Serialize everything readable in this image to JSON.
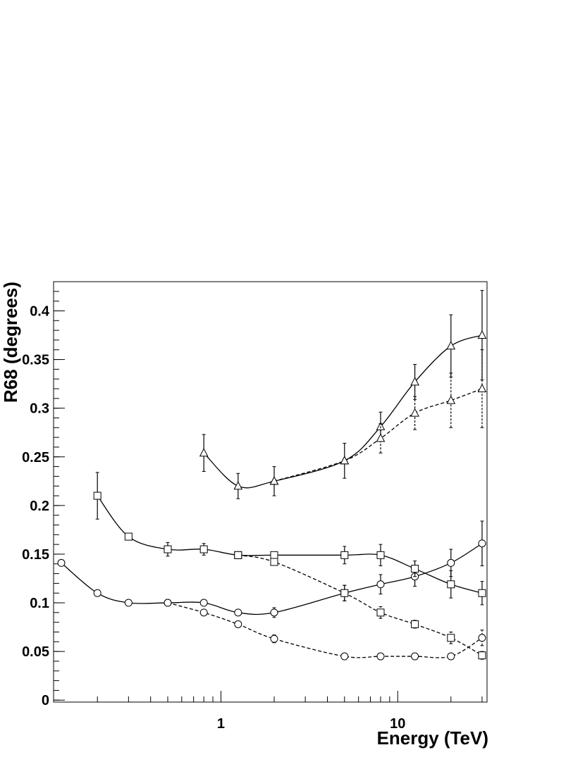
{
  "chart_data": {
    "type": "line",
    "xlabel": "Energy (TeV)",
    "ylabel": "R68 (degrees)",
    "xscale": "log",
    "xlim": [
      0.113,
      32
    ],
    "xticks": [
      1,
      10
    ],
    "ylim": [
      -0.002,
      0.43
    ],
    "yticks": [
      0,
      0.05,
      0.1,
      0.15,
      0.2,
      0.25,
      0.3,
      0.35,
      0.4
    ],
    "color": "#000000",
    "series": [
      {
        "marker": "circle",
        "dash": false,
        "x": [
          0.125,
          0.2,
          0.3,
          0.5,
          0.8,
          1.25,
          2,
          5,
          8,
          12.5,
          20,
          30
        ],
        "values": [
          0.141,
          0.11,
          0.1,
          0.1,
          0.1,
          0.09,
          0.09,
          0.11,
          0.119,
          0.127,
          0.141,
          0.161
        ],
        "errors": [
          null,
          null,
          null,
          null,
          null,
          null,
          0.005,
          0.008,
          0.01,
          0.01,
          0.014,
          0.023
        ]
      },
      {
        "marker": "circle",
        "dash": true,
        "x": [
          0.5,
          0.8,
          1.25,
          2,
          5,
          8,
          12.5,
          20,
          30
        ],
        "values": [
          0.1,
          0.09,
          0.078,
          0.063,
          0.045,
          0.045,
          0.045,
          0.045,
          0.064
        ],
        "errors": [
          null,
          null,
          null,
          0.004,
          null,
          null,
          null,
          0.003,
          0.008
        ]
      },
      {
        "marker": "square",
        "dash": false,
        "x": [
          0.2,
          0.3,
          0.5,
          0.8,
          1.25,
          2,
          5,
          8,
          12.5,
          20,
          30
        ],
        "values": [
          0.21,
          0.168,
          0.155,
          0.155,
          0.149,
          0.149,
          0.149,
          0.149,
          0.135,
          0.119,
          0.11
        ],
        "errors": [
          0.024,
          null,
          0.007,
          0.006,
          null,
          null,
          0.009,
          0.011,
          0.008,
          0.014,
          0.012
        ]
      },
      {
        "marker": "square",
        "dash": true,
        "x": [
          1.25,
          2,
          5,
          8,
          12.5,
          20,
          30
        ],
        "values": [
          0.149,
          0.142,
          0.11,
          0.09,
          0.078,
          0.064,
          0.046
        ],
        "errors": [
          null,
          null,
          0.008,
          0.006,
          0.004,
          0.006,
          0.004
        ]
      },
      {
        "marker": "triangle",
        "dash": false,
        "x": [
          0.8,
          1.25,
          2,
          5,
          8,
          12.5,
          20,
          30
        ],
        "values": [
          0.254,
          0.22,
          0.225,
          0.246,
          0.281,
          0.327,
          0.364,
          0.375
        ],
        "errors": [
          0.019,
          0.013,
          0.015,
          0.018,
          0.015,
          0.018,
          0.032,
          0.046
        ]
      },
      {
        "marker": "triangle",
        "dash": true,
        "x": [
          2,
          5,
          8,
          12.5,
          20,
          30
        ],
        "values": [
          0.225,
          0.246,
          0.269,
          0.295,
          0.308,
          0.32
        ],
        "errors": [
          null,
          null,
          0.015,
          0.017,
          0.028,
          0.04
        ]
      }
    ]
  }
}
